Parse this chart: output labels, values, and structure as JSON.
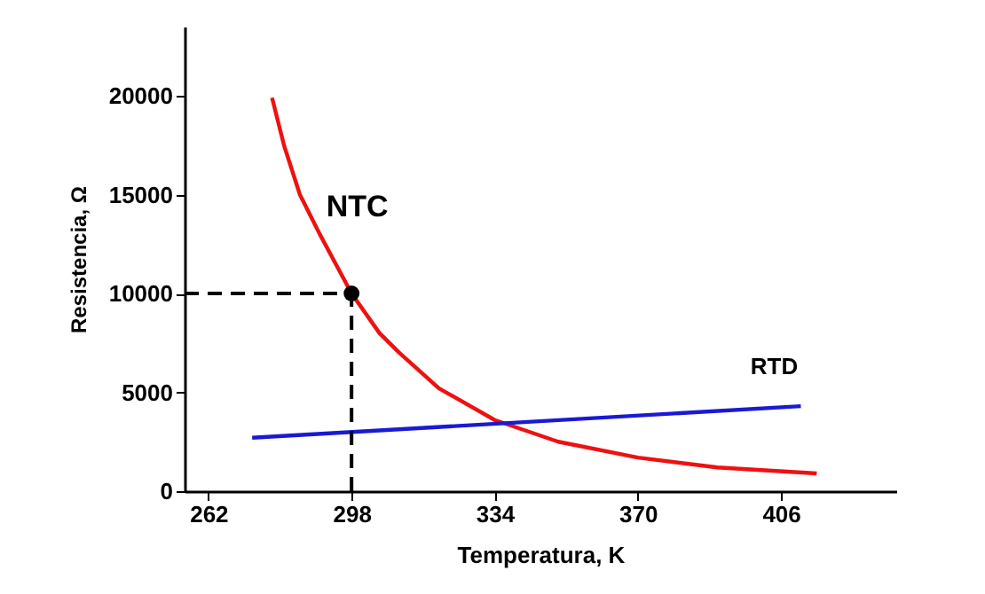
{
  "chart_data": {
    "type": "line",
    "xlabel": "Temperatura, K",
    "ylabel": "Resistencia, Ω",
    "xlim": [
      256,
      435
    ],
    "ylim": [
      0,
      23500
    ],
    "xticks": [
      262,
      298,
      334,
      370,
      406
    ],
    "yticks": [
      0,
      5000,
      10000,
      15000,
      20000
    ],
    "marker": "none",
    "line_style": "solid",
    "series": [
      {
        "name": "NTC",
        "color": "#ee1111",
        "x": [
          278,
          281,
          285,
          290,
          298,
          305,
          310,
          320,
          334,
          350,
          370,
          390,
          415
        ],
        "values": [
          19900,
          17500,
          15000,
          13000,
          10000,
          8000,
          7000,
          5200,
          3600,
          2500,
          1700,
          1200,
          900
        ]
      },
      {
        "name": "RTD",
        "color": "#1a1ad4",
        "x": [
          273,
          411
        ],
        "values": [
          2700,
          4300
        ]
      },
      {
        "type": "scatter",
        "marker": "circle",
        "color": "#000000",
        "x": [
          298
        ],
        "values": [
          10000
        ]
      }
    ],
    "ref_lines": [
      {
        "axis": "y",
        "value": 10000,
        "color": "#000000",
        "line_style": "dashed"
      },
      {
        "axis": "x",
        "value": 298,
        "color": "#000000",
        "line_style": "dashed"
      }
    ]
  }
}
